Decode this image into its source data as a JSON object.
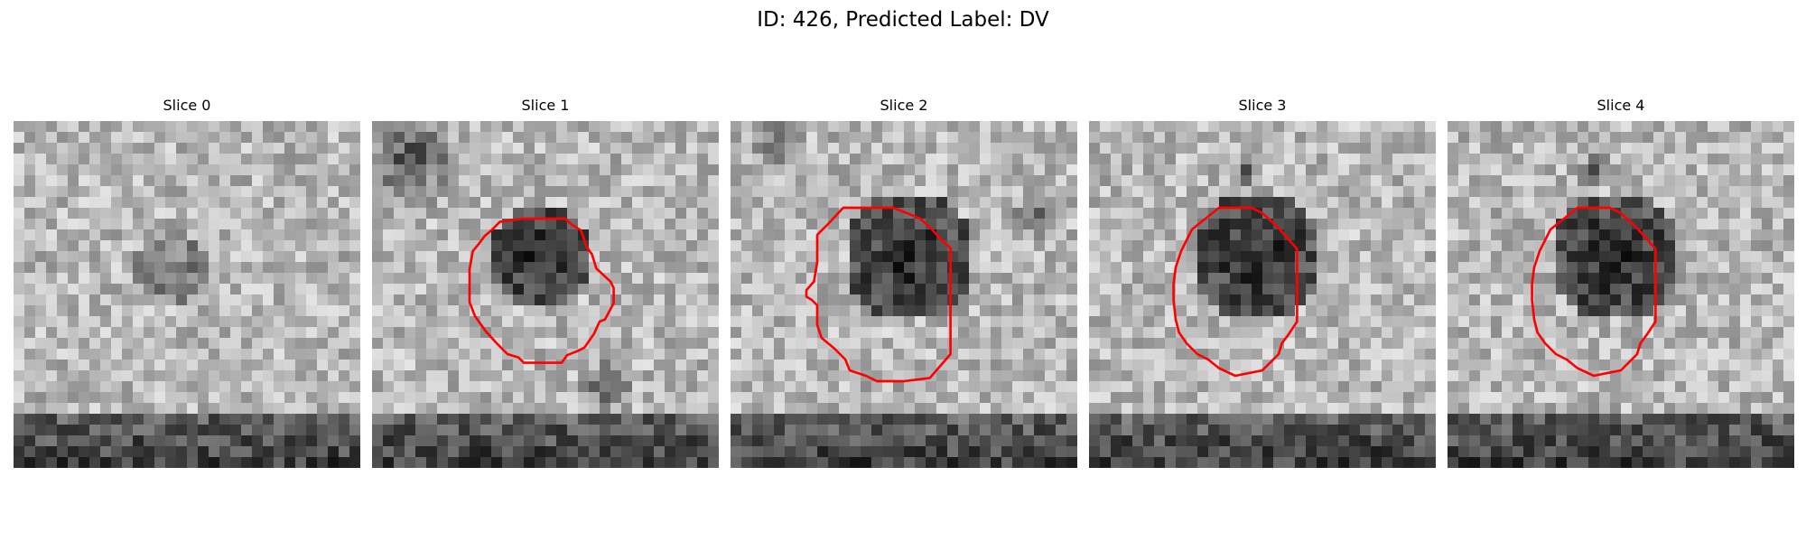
{
  "figure": {
    "title": "ID: 426, Predicted Label: DV"
  },
  "colors": {
    "contour": "#ff0000",
    "background": "#ffffff"
  },
  "panels": [
    {
      "title": "Slice 0",
      "has_contour": false,
      "seed": 11
    },
    {
      "title": "Slice 1",
      "has_contour": true,
      "seed": 23
    },
    {
      "title": "Slice 2",
      "has_contour": true,
      "seed": 37
    },
    {
      "title": "Slice 3",
      "has_contour": true,
      "seed": 51
    },
    {
      "title": "Slice 4",
      "has_contour": true,
      "seed": 67
    }
  ]
}
